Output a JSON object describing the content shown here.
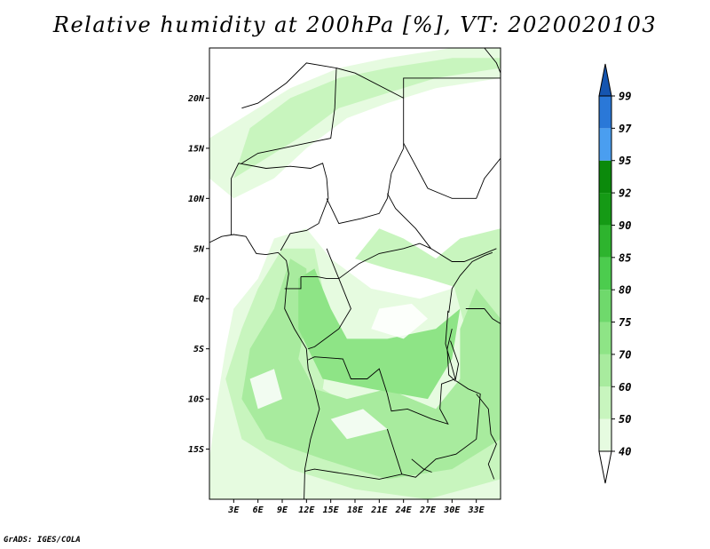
{
  "title": "Relative humidity at 200hPa [%], VT: 2020020103",
  "footer": "GrADS: IGES/COLA",
  "map": {
    "lon_range": [
      0,
      36
    ],
    "lat_range": [
      -20,
      25
    ],
    "lon_ticks": [
      {
        "value": 3,
        "label": "3E"
      },
      {
        "value": 6,
        "label": "6E"
      },
      {
        "value": 9,
        "label": "9E"
      },
      {
        "value": 12,
        "label": "12E"
      },
      {
        "value": 15,
        "label": "15E"
      },
      {
        "value": 18,
        "label": "18E"
      },
      {
        "value": 21,
        "label": "21E"
      },
      {
        "value": 24,
        "label": "24E"
      },
      {
        "value": 27,
        "label": "27E"
      },
      {
        "value": 30,
        "label": "30E"
      },
      {
        "value": 33,
        "label": "33E"
      }
    ],
    "lat_ticks": [
      {
        "value": 20,
        "label": "20N"
      },
      {
        "value": 15,
        "label": "15N"
      },
      {
        "value": 10,
        "label": "10N"
      },
      {
        "value": 5,
        "label": "5N"
      },
      {
        "value": 0,
        "label": "EQ"
      },
      {
        "value": -5,
        "label": "5S"
      },
      {
        "value": -10,
        "label": "10S"
      },
      {
        "value": -15,
        "label": "15S"
      }
    ]
  },
  "colorbar": {
    "levels": [
      "40",
      "50",
      "60",
      "70",
      "75",
      "80",
      "85",
      "90",
      "92",
      "95",
      "97",
      "99"
    ],
    "colors": [
      "#ffffff",
      "#e6fbe0",
      "#c8f5be",
      "#a8eb9e",
      "#8ee486",
      "#6fd96c",
      "#4ccc4e",
      "#2eb42e",
      "#159a15",
      "#0b8a0b",
      "#4a9ef0",
      "#2a78d8",
      "#1555b0"
    ]
  }
}
